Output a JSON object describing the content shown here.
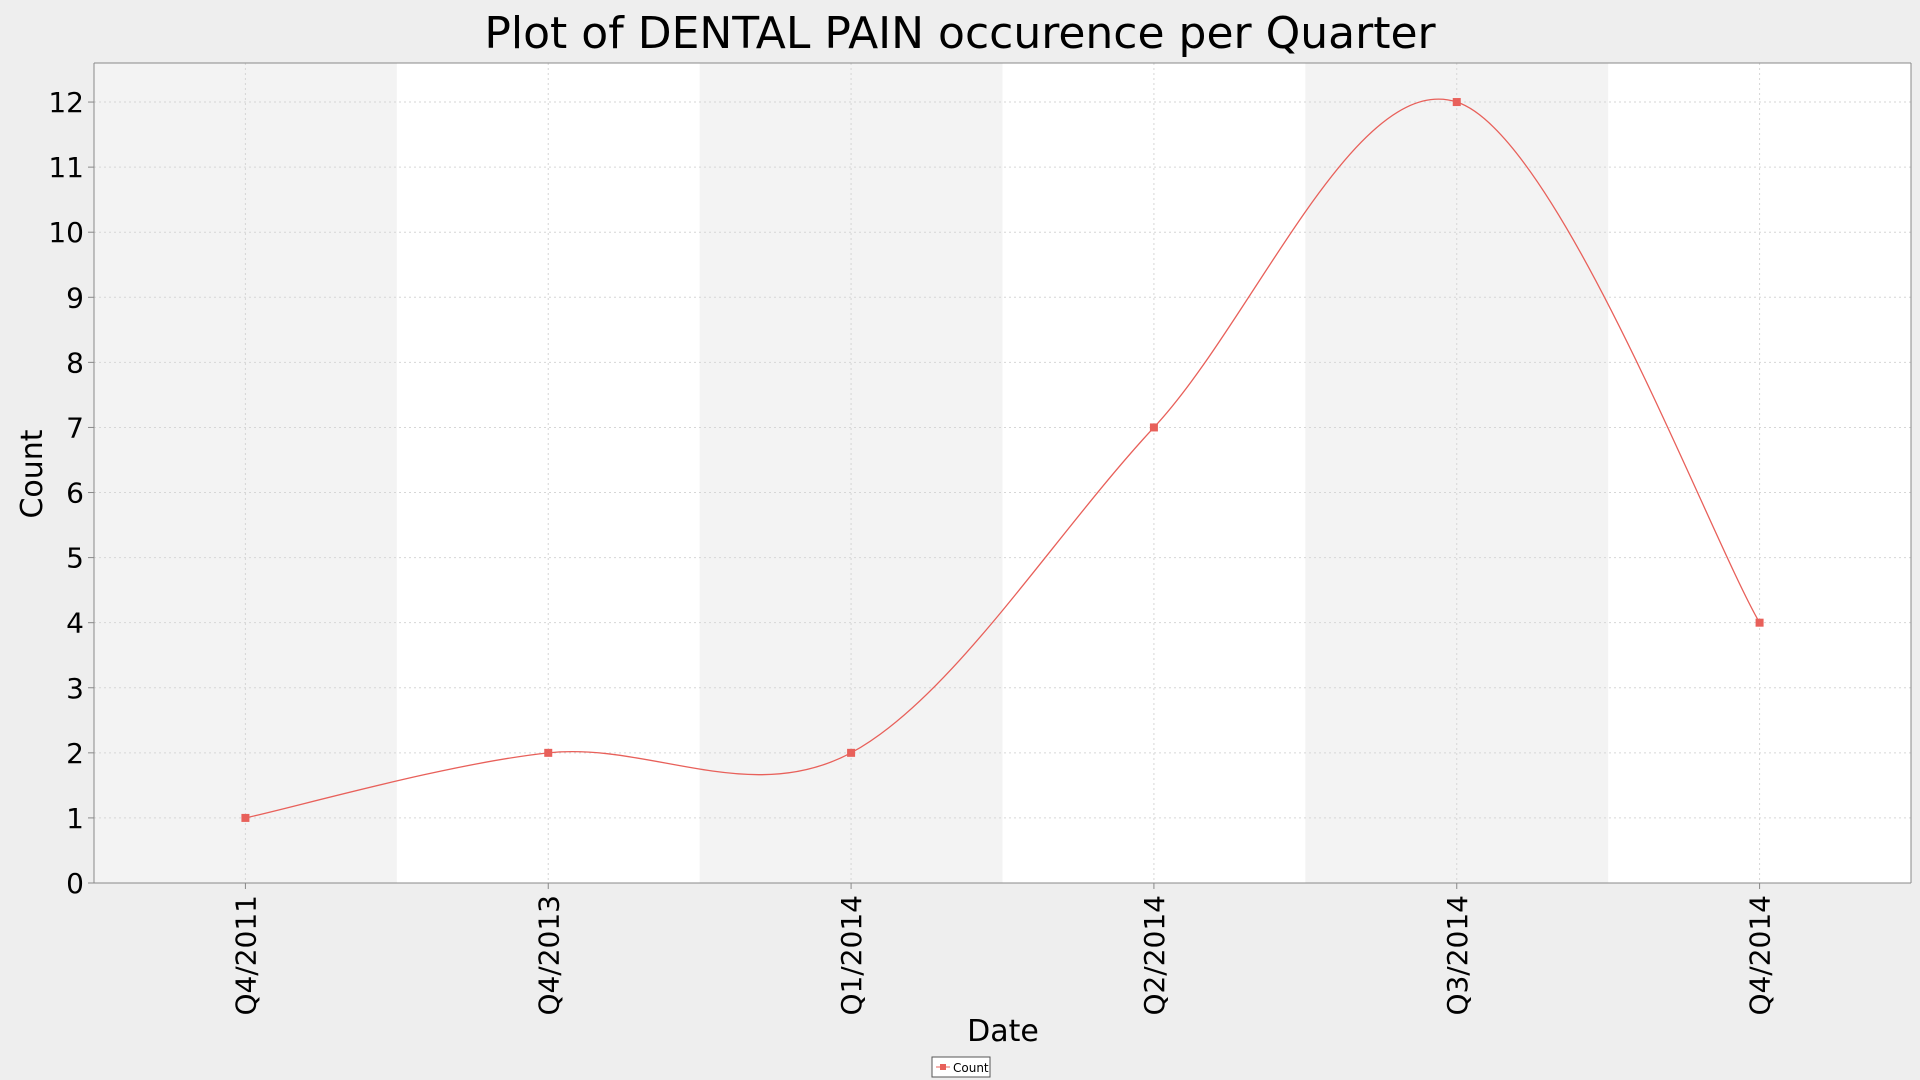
{
  "chart_data": {
    "type": "line",
    "title": "Plot of DENTAL PAIN occurence per Quarter",
    "xlabel": "Date",
    "ylabel": "Count",
    "categories": [
      "Q4/2011",
      "Q4/2013",
      "Q1/2014",
      "Q2/2014",
      "Q3/2014",
      "Q4/2014"
    ],
    "series": [
      {
        "name": "Count",
        "values": [
          1,
          2,
          2,
          7,
          12,
          4
        ],
        "color": "#e8605a"
      }
    ],
    "ylim": [
      0,
      12.6
    ],
    "yticks": [
      0,
      1,
      2,
      3,
      4,
      5,
      6,
      7,
      8,
      9,
      10,
      11,
      12
    ],
    "grid": true,
    "smoothed": true,
    "alternating_bands": true,
    "legend_position": "bottom-center",
    "colors": {
      "background": "#eeeeee",
      "plot_background": "#ffffff",
      "band": "#f3f3f3",
      "grid": "#d6d6d6",
      "axis": "#888888",
      "text": "#000000"
    }
  }
}
